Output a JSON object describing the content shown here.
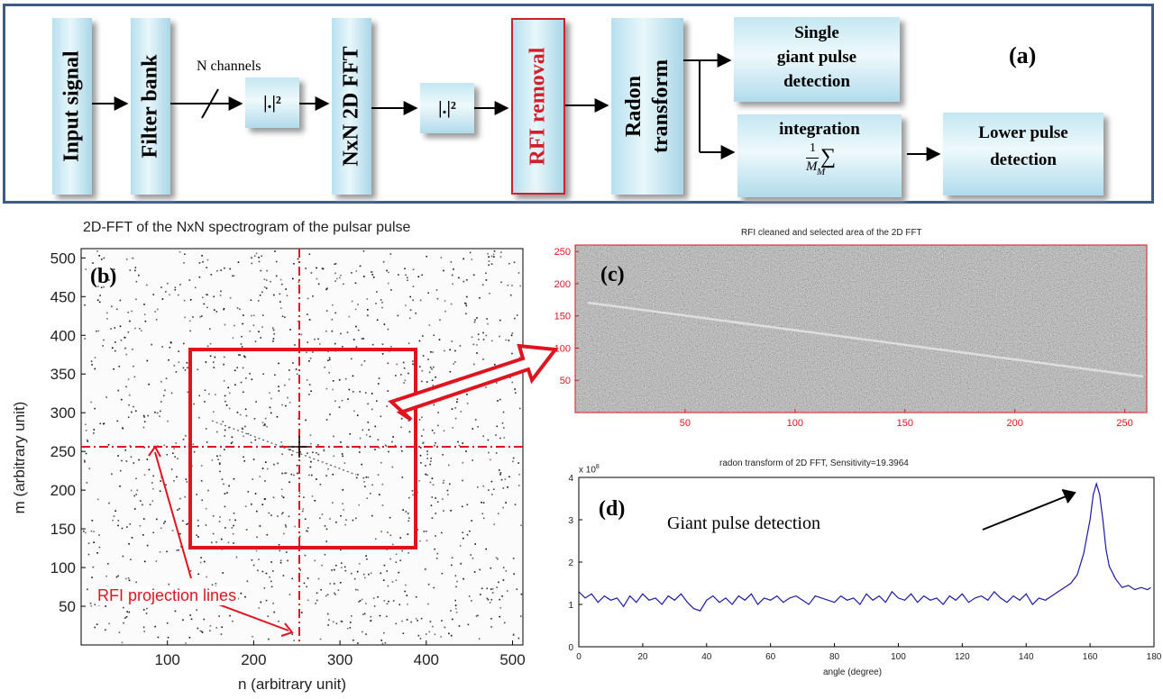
{
  "panel_a": {
    "label": "(a)",
    "input_signal": "Input signal",
    "filter_bank": "Filter bank",
    "n_channels": "N channels",
    "mag_sq_1": "|.|²",
    "fft": "NxN 2D FFT",
    "mag_sq_2": "|.|²",
    "rfi_removal": "RFI removal",
    "radon_line1": "Radon",
    "radon_line2": "transform",
    "single_line1": "Single",
    "single_line2": "giant pulse",
    "single_line3": "detection",
    "integration": "integration",
    "integration_formula_num": "1",
    "integration_formula_den": "M",
    "integration_formula_sub": "M",
    "lower_line1": "Lower pulse",
    "lower_line2": "detection"
  },
  "panel_b": {
    "label": "(b)",
    "title": "2D-FFT of the NxN spectrogram of the pulsar pulse",
    "xlabel": "n (arbitrary unit)",
    "ylabel": "m (arbitrary unit)",
    "annotation": "RFI projection lines",
    "xticks": [
      "100",
      "200",
      "300",
      "400",
      "500"
    ],
    "yticks": [
      "50",
      "100",
      "150",
      "200",
      "250",
      "300",
      "350",
      "400",
      "450",
      "500"
    ],
    "accent": "#e0141e"
  },
  "panel_c": {
    "label": "(c)",
    "title": "RFI cleaned and selected area of the 2D FFT",
    "xticks": [
      "50",
      "100",
      "150",
      "200",
      "250"
    ],
    "yticks": [
      "50",
      "100",
      "150",
      "200",
      "250"
    ]
  },
  "panel_d": {
    "label": "(d)",
    "title": "radon transform of 2D FFT, Sensitivity=19.3964",
    "exponent": "x 10",
    "exponent_power": "8",
    "xlabel": "angle (degree)",
    "annotation": "Giant pulse detection",
    "line_color": "#1a1aa6"
  },
  "chart_data": {
    "type": "line",
    "title": "radon transform of 2D FFT, Sensitivity=19.3964",
    "xlabel": "angle (degree)",
    "ylabel": "",
    "xlim": [
      0,
      180
    ],
    "ylim": [
      0,
      4
    ],
    "y_multiplier": "x 10^8",
    "xticks": [
      0,
      20,
      40,
      60,
      80,
      100,
      120,
      140,
      160,
      180
    ],
    "yticks": [
      0,
      1,
      2,
      3,
      4
    ],
    "series": [
      {
        "x": [
          0,
          2,
          4,
          6,
          8,
          10,
          12,
          14,
          16,
          18,
          20,
          22,
          24,
          26,
          28,
          30,
          32,
          34,
          36,
          38,
          40,
          42,
          44,
          46,
          48,
          50,
          52,
          54,
          56,
          58,
          60,
          62,
          64,
          66,
          68,
          70,
          72,
          74,
          76,
          78,
          80,
          82,
          84,
          86,
          88,
          90,
          92,
          94,
          96,
          98,
          100,
          102,
          104,
          106,
          108,
          110,
          112,
          114,
          116,
          118,
          120,
          122,
          124,
          126,
          128,
          130,
          132,
          134,
          136,
          138,
          140,
          142,
          144,
          146,
          148,
          150,
          152,
          154,
          156,
          158,
          160,
          161,
          162,
          163,
          164,
          165,
          166,
          168,
          170,
          172,
          174,
          176,
          178,
          179
        ],
        "y": [
          1.3,
          1.15,
          1.25,
          1.05,
          1.2,
          1.1,
          1.15,
          0.95,
          1.2,
          1.05,
          1.25,
          1.1,
          1.15,
          1.0,
          1.2,
          1.1,
          1.25,
          1.05,
          0.9,
          0.85,
          1.1,
          1.2,
          1.05,
          1.15,
          1.0,
          1.2,
          1.1,
          1.25,
          1.0,
          1.15,
          1.1,
          1.2,
          1.05,
          1.15,
          1.2,
          1.1,
          1.0,
          1.2,
          1.15,
          1.1,
          1.05,
          1.2,
          1.1,
          1.15,
          1.0,
          1.25,
          1.1,
          1.2,
          1.05,
          1.3,
          1.15,
          1.1,
          1.25,
          1.05,
          1.2,
          1.1,
          1.15,
          1.0,
          1.2,
          1.1,
          1.25,
          1.05,
          1.15,
          1.2,
          1.1,
          1.3,
          1.15,
          1.05,
          1.2,
          1.1,
          1.25,
          1.0,
          1.15,
          1.1,
          1.2,
          1.3,
          1.4,
          1.5,
          1.7,
          2.2,
          3.0,
          3.6,
          3.85,
          3.6,
          3.0,
          2.3,
          1.9,
          1.6,
          1.4,
          1.45,
          1.35,
          1.4,
          1.35,
          1.4
        ]
      }
    ]
  }
}
